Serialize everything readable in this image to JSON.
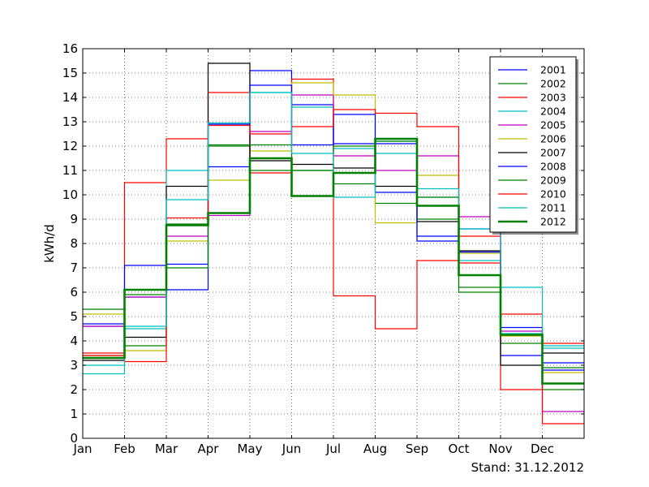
{
  "chart_data": {
    "type": "line",
    "step": true,
    "xlabel": "",
    "ylabel": "kWh/d",
    "ylim": [
      0,
      16
    ],
    "yticks": [
      0,
      1,
      2,
      3,
      4,
      5,
      6,
      7,
      8,
      9,
      10,
      11,
      12,
      13,
      14,
      15,
      16
    ],
    "categories": [
      "Jan",
      "Feb",
      "Mar",
      "Apr",
      "May",
      "Jun",
      "Jul",
      "Aug",
      "Sep",
      "Oct",
      "Nov",
      "Dec"
    ],
    "grid": true,
    "legend_position": "top-right",
    "series": [
      {
        "name": "2001",
        "color": "#0000ff",
        "width": 1.2,
        "values": [
          4.6,
          5.8,
          6.1,
          11.15,
          15.1,
          13.7,
          12.1,
          12.1,
          8.1,
          8.6,
          3.4,
          2.8
        ]
      },
      {
        "name": "2002",
        "color": "#008000",
        "width": 1.2,
        "values": [
          5.3,
          3.8,
          8.8,
          12.0,
          11.0,
          11.0,
          10.45,
          9.65,
          9.0,
          6.0,
          3.9,
          2.0
        ]
      },
      {
        "name": "2003",
        "color": "#ff0000",
        "width": 1.2,
        "values": [
          3.5,
          10.5,
          12.3,
          14.2,
          10.9,
          14.75,
          5.85,
          4.5,
          7.3,
          7.2,
          2.0,
          3.9
        ]
      },
      {
        "name": "2004",
        "color": "#00bfbf",
        "width": 1.2,
        "values": [
          3.0,
          4.5,
          11.0,
          12.9,
          14.2,
          13.6,
          11.9,
          12.2,
          9.9,
          7.3,
          4.3,
          3.7
        ]
      },
      {
        "name": "2005",
        "color": "#bf00bf",
        "width": 1.2,
        "values": [
          4.6,
          5.8,
          8.3,
          9.15,
          12.6,
          14.1,
          11.6,
          11.0,
          11.6,
          9.1,
          4.4,
          1.1
        ]
      },
      {
        "name": "2006",
        "color": "#bfbf00",
        "width": 1.2,
        "values": [
          5.1,
          3.6,
          8.1,
          10.6,
          11.8,
          14.6,
          14.1,
          8.85,
          10.8,
          7.6,
          4.2,
          2.7
        ]
      },
      {
        "name": "2007",
        "color": "#000000",
        "width": 1.2,
        "values": [
          3.2,
          4.15,
          10.35,
          15.4,
          11.4,
          11.25,
          11.1,
          10.35,
          8.9,
          7.7,
          3.0,
          3.5
        ]
      },
      {
        "name": "2008",
        "color": "#0000ff",
        "width": 1.2,
        "values": [
          4.7,
          7.1,
          7.15,
          12.9,
          14.5,
          12.05,
          13.3,
          10.1,
          8.3,
          7.65,
          4.55,
          3.1
        ]
      },
      {
        "name": "2009",
        "color": "#008000",
        "width": 1.2,
        "values": [
          3.4,
          5.9,
          7.0,
          12.05,
          12.05,
          11.0,
          12.0,
          12.2,
          9.9,
          6.2,
          4.25,
          2.9
        ]
      },
      {
        "name": "2010",
        "color": "#ff0000",
        "width": 1.2,
        "values": [
          3.4,
          3.15,
          9.05,
          12.85,
          12.5,
          12.8,
          13.5,
          13.35,
          12.8,
          8.3,
          5.1,
          0.6
        ]
      },
      {
        "name": "2011",
        "color": "#00bfbf",
        "width": 1.2,
        "values": [
          2.65,
          4.6,
          9.8,
          12.95,
          14.2,
          11.7,
          9.9,
          11.7,
          10.25,
          8.6,
          6.2,
          3.8
        ]
      },
      {
        "name": "2012",
        "color": "#008000",
        "width": 2.6,
        "values": [
          3.3,
          6.1,
          8.75,
          9.25,
          11.5,
          9.95,
          10.9,
          12.3,
          9.55,
          6.7,
          4.25,
          2.25
        ]
      }
    ]
  },
  "footer": {
    "stand": "Stand: 31.12.2012"
  }
}
